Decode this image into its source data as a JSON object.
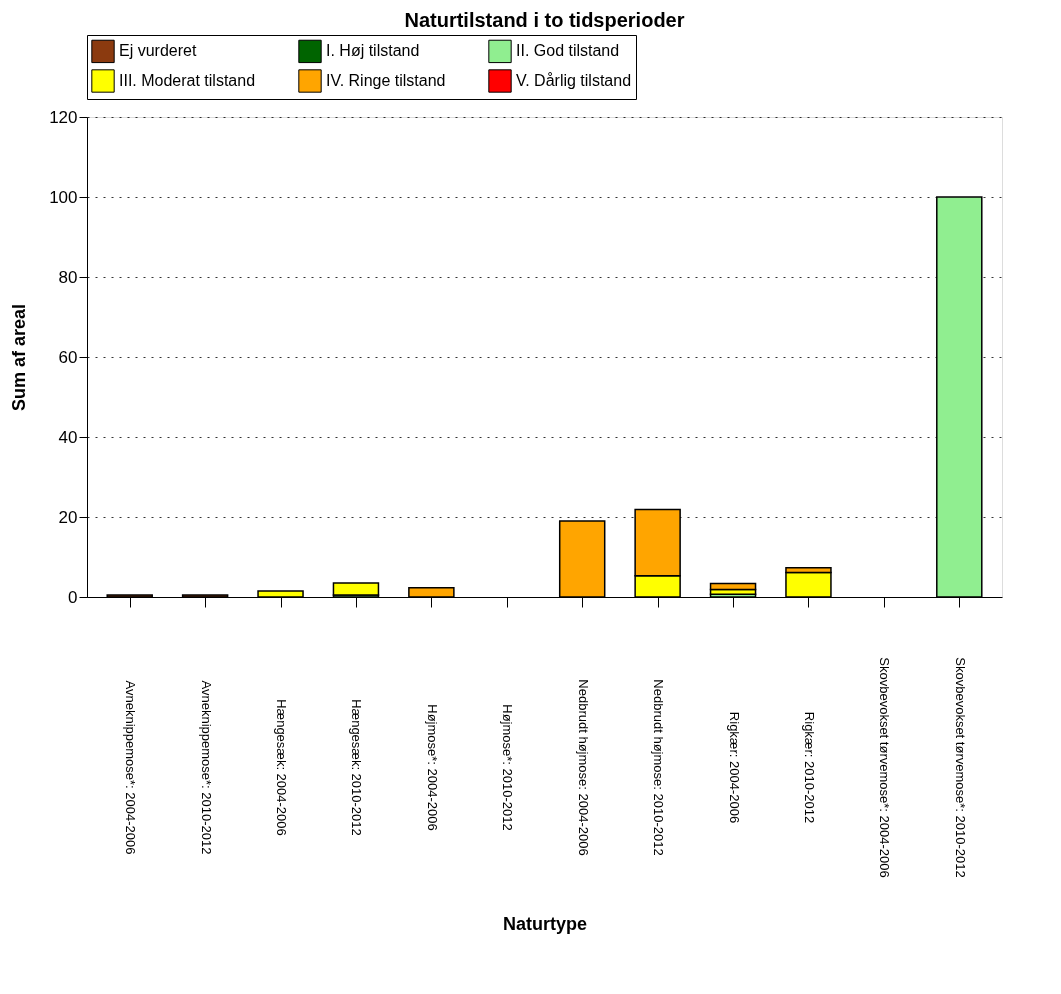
{
  "chart_data": {
    "type": "bar",
    "title": "Naturtilstand i to tidsperioder",
    "xlabel": "Naturtype",
    "ylabel": "Sum af areal",
    "categories": [
      "Avneknippemose*: 2004-2006",
      "Avneknippemose*: 2010-2012",
      "Hængesæk: 2004-2006",
      "Hængesæk: 2010-2012",
      "Højmose*: 2004-2006",
      "Højmose*: 2010-2012",
      "Nedbrudt højmose: 2004-2006",
      "Nedbrudt højmose: 2010-2012",
      "Rigkær: 2004-2006",
      "Rigkær: 2010-2012",
      "Skovbevokset tørvemose*: 2004-2006",
      "Skovbevokset tørvemose*: 2010-2012"
    ],
    "stacked": true,
    "series": [
      {
        "name": "Ej vurderet",
        "color": "#8b3a0f",
        "values": [
          0.5,
          0.5,
          null,
          null,
          null,
          null,
          null,
          null,
          null,
          null,
          null,
          null
        ]
      },
      {
        "name": "I. Høj tilstand",
        "color": "#006400",
        "values": [
          null,
          null,
          null,
          null,
          null,
          null,
          null,
          null,
          null,
          null,
          null,
          null
        ]
      },
      {
        "name": "II. God tilstand",
        "color": "#90ee90",
        "values": [
          null,
          null,
          null,
          0.5,
          null,
          null,
          null,
          null,
          0.7,
          null,
          null,
          100
        ]
      },
      {
        "name": "III. Moderat tilstand",
        "color": "#ffff00",
        "values": [
          null,
          null,
          1.5,
          3.0,
          null,
          null,
          null,
          5.3,
          1.2,
          6.1,
          null,
          null
        ]
      },
      {
        "name": "IV. Ringe tilstand",
        "color": "#ffa500",
        "values": [
          null,
          null,
          null,
          null,
          2.3,
          null,
          19.0,
          16.6,
          1.5,
          1.2,
          null,
          null
        ]
      },
      {
        "name": "V. Dårlig tilstand",
        "color": "#ff0000",
        "values": [
          null,
          null,
          null,
          null,
          null,
          null,
          null,
          null,
          null,
          null,
          null,
          null
        ]
      }
    ],
    "ylim": [
      0,
      120
    ],
    "yticks": [
      0,
      20,
      40,
      60,
      80,
      100,
      120
    ],
    "grid": "y",
    "legend": "top"
  }
}
